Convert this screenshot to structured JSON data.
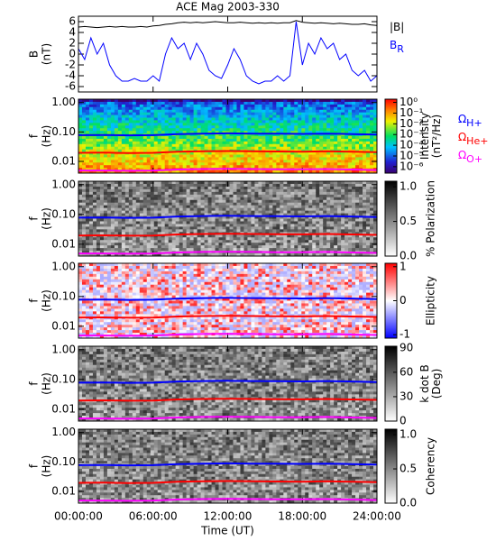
{
  "chart_data": [
    {
      "type": "line",
      "title": "ACE Mag 2003-330",
      "ylabel": "B",
      "yunit": "(nT)",
      "x": [
        0,
        0.5,
        1,
        1.5,
        2,
        2.5,
        3,
        3.5,
        4,
        4.5,
        5,
        5.5,
        6,
        6.5,
        7,
        7.5,
        8,
        8.5,
        9,
        9.5,
        10,
        10.5,
        11,
        11.5,
        12,
        12.5,
        13,
        13.5,
        14,
        14.5,
        15,
        15.5,
        16,
        16.5,
        17,
        17.5,
        18,
        18.5,
        19,
        19.5,
        20,
        20.5,
        21,
        21.5,
        22,
        22.5,
        23,
        23.5,
        24
      ],
      "series": [
        {
          "name": "|B|",
          "color": "#000000",
          "values": [
            5.0,
            5.1,
            5.0,
            4.9,
            5.0,
            5.1,
            5.0,
            5.1,
            5.0,
            5.0,
            5.1,
            5.0,
            5.2,
            5.3,
            5.5,
            5.6,
            5.8,
            5.9,
            5.8,
            5.9,
            5.8,
            5.9,
            6.0,
            5.9,
            5.8,
            5.8,
            5.9,
            5.8,
            5.7,
            5.8,
            5.7,
            5.8,
            5.7,
            5.8,
            5.8,
            6.2,
            5.9,
            5.8,
            5.7,
            5.8,
            5.7,
            5.6,
            5.7,
            5.6,
            5.5,
            5.5,
            5.6,
            5.4,
            5.3
          ]
        },
        {
          "name": "B",
          "subscript": "R",
          "color": "#0000ff",
          "values": [
            1,
            -1,
            3,
            0,
            2,
            -2,
            -4,
            -5,
            -5,
            -4.5,
            -5,
            -5,
            -4,
            -5,
            0,
            3,
            1,
            2,
            -1,
            2,
            0,
            -3,
            -4,
            -4.5,
            -2,
            1,
            -1,
            -4,
            -5,
            -5.5,
            -5,
            -5,
            -4,
            -5,
            -4,
            6,
            -2,
            2,
            0,
            3,
            1,
            2,
            -1,
            0,
            -3,
            -4,
            -3,
            -5,
            -4
          ]
        }
      ],
      "xlim": [
        0,
        24
      ],
      "xticks": [
        0,
        6,
        12,
        18,
        24
      ],
      "ylim": [
        -7,
        7
      ],
      "yticks": [
        -6,
        -4,
        -2,
        0,
        2,
        4,
        6
      ]
    },
    {
      "type": "spectrogram",
      "ylabel": "f",
      "yunit": "(Hz)",
      "log_y": true,
      "ylim": [
        0.004,
        1.3
      ],
      "yticks": [
        {
          "value": 1,
          "label": "1.00"
        },
        {
          "value": 0.1,
          "label": "0.10"
        },
        {
          "value": 0.01,
          "label": "0.01"
        }
      ],
      "xlim": [
        0,
        24
      ],
      "xticks": [
        0,
        6,
        12,
        18,
        24
      ],
      "x": [
        0,
        2,
        4,
        6,
        8,
        10,
        12,
        14,
        16,
        18,
        20,
        22,
        24
      ],
      "series": [
        {
          "name": "Ω",
          "subscript": "H+",
          "color": "#0000ff",
          "values": [
            0.078,
            0.079,
            0.077,
            0.078,
            0.085,
            0.088,
            0.09,
            0.088,
            0.087,
            0.086,
            0.088,
            0.085,
            0.082
          ]
        },
        {
          "name": "Ω",
          "subscript": "He+",
          "color": "#ff0000",
          "values": [
            0.0195,
            0.0198,
            0.0193,
            0.0195,
            0.0213,
            0.022,
            0.0225,
            0.022,
            0.0218,
            0.0215,
            0.022,
            0.0213,
            0.0205
          ]
        },
        {
          "name": "Ω",
          "subscript": "O+",
          "color": "#ff00ff",
          "values": [
            0.0049,
            0.0049,
            0.0048,
            0.0049,
            0.0053,
            0.0055,
            0.0056,
            0.0055,
            0.0054,
            0.0054,
            0.0055,
            0.0053,
            0.0051
          ]
        }
      ],
      "colormap": "rainbow",
      "colorbar_label": [
        "Intensity",
        "(nT²/Hz)"
      ],
      "clim": [
        -6.6,
        0.3
      ],
      "cticks": [
        {
          "value": 0,
          "label": "10⁰"
        },
        {
          "value": -1,
          "label": "10⁻¹"
        },
        {
          "value": -2,
          "label": "10⁻²"
        },
        {
          "value": -3,
          "label": "10⁻³"
        },
        {
          "value": -4,
          "label": "10⁻⁴"
        },
        {
          "value": -5,
          "label": "10⁻⁵"
        },
        {
          "value": -6,
          "label": "10⁻⁶"
        }
      ]
    },
    {
      "type": "spectrogram",
      "ylabel": "f",
      "yunit": "(Hz)",
      "log_y": true,
      "ylim": [
        0.004,
        1.3
      ],
      "yticks": [
        {
          "value": 1,
          "label": "1.00"
        },
        {
          "value": 0.1,
          "label": "0.10"
        },
        {
          "value": 0.01,
          "label": "0.01"
        }
      ],
      "xlim": [
        0,
        24
      ],
      "xticks": [
        0,
        6,
        12,
        18,
        24
      ],
      "colormap": "gray",
      "colorbar_label": [
        "% Polarization"
      ],
      "clim": [
        0,
        1.08
      ],
      "cticks": [
        {
          "value": 0,
          "label": "0.0"
        },
        {
          "value": 0.5,
          "label": "0.5"
        },
        {
          "value": 1,
          "label": "1.0"
        }
      ]
    },
    {
      "type": "spectrogram",
      "ylabel": "f",
      "yunit": "(Hz)",
      "log_y": true,
      "ylim": [
        0.004,
        1.3
      ],
      "yticks": [
        {
          "value": 1,
          "label": "1.00"
        },
        {
          "value": 0.1,
          "label": "0.10"
        },
        {
          "value": 0.01,
          "label": "0.01"
        }
      ],
      "xlim": [
        0,
        24
      ],
      "xticks": [
        0,
        6,
        12,
        18,
        24
      ],
      "colormap": "bwr",
      "colorbar_label": [
        "Ellipticity"
      ],
      "clim": [
        -1.1,
        1.1
      ],
      "cticks": [
        -1,
        0,
        1
      ]
    },
    {
      "type": "spectrogram",
      "ylabel": "f",
      "yunit": "(Hz)",
      "log_y": true,
      "ylim": [
        0.004,
        1.3
      ],
      "yticks": [
        {
          "value": 1,
          "label": "1.00"
        },
        {
          "value": 0.1,
          "label": "0.10"
        },
        {
          "value": 0.01,
          "label": "0.01"
        }
      ],
      "xlim": [
        0,
        24
      ],
      "xticks": [
        0,
        6,
        12,
        18,
        24
      ],
      "colormap": "gray",
      "colorbar_label": [
        "k dot B",
        "(Deg)"
      ],
      "clim": [
        0,
        92
      ],
      "cticks": [
        0,
        30,
        60,
        90
      ]
    },
    {
      "type": "spectrogram",
      "ylabel": "f",
      "yunit": "(Hz)",
      "log_y": true,
      "ylim": [
        0.004,
        1.3
      ],
      "yticks": [
        {
          "value": 1,
          "label": "1.00"
        },
        {
          "value": 0.1,
          "label": "0.10"
        },
        {
          "value": 0.01,
          "label": "0.01"
        }
      ],
      "xlim": [
        0,
        24
      ],
      "xticks": [
        {
          "value": 0,
          "label": "00:00:00"
        },
        {
          "value": 6,
          "label": "06:00:00"
        },
        {
          "value": 12,
          "label": "12:00:00"
        },
        {
          "value": 18,
          "label": "18:00:00"
        },
        {
          "value": 24,
          "label": "24:00:00"
        }
      ],
      "xlabel": "Time (UT)",
      "colormap": "gray",
      "colorbar_label": [
        "Coherency"
      ],
      "clim": [
        0,
        1.08
      ],
      "cticks": [
        {
          "value": 0,
          "label": "0.0"
        },
        {
          "value": 0.5,
          "label": "0.5"
        },
        {
          "value": 1,
          "label": "1.0"
        }
      ]
    }
  ]
}
